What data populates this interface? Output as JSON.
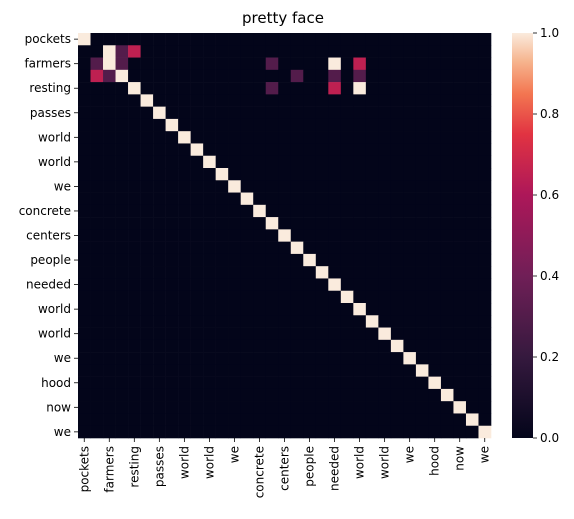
{
  "chart_data": {
    "type": "heatmap",
    "title": "pretty face",
    "row_labels": [
      "pockets",
      "",
      "farmers",
      "",
      "resting",
      "",
      "passes",
      "",
      "world",
      "",
      "world",
      "",
      "we",
      "",
      "concrete",
      "",
      "centers",
      "",
      "people",
      "",
      "needed",
      "",
      "world",
      "",
      "world",
      "",
      "we",
      "",
      "hood",
      "",
      "now",
      "",
      "we"
    ],
    "col_labels": [
      "pockets",
      "",
      "farmers",
      "",
      "resting",
      "",
      "passes",
      "",
      "world",
      "",
      "world",
      "",
      "we",
      "",
      "concrete",
      "",
      "centers",
      "",
      "people",
      "",
      "needed",
      "",
      "world",
      "",
      "world",
      "",
      "we",
      "",
      "hood",
      "",
      "now",
      "",
      "we"
    ],
    "values": [
      [
        1,
        0,
        0,
        0,
        0,
        0,
        0,
        0,
        0,
        0,
        0,
        0,
        0,
        0,
        0,
        0,
        0,
        0,
        0,
        0,
        0,
        0,
        0,
        0,
        0,
        0,
        0,
        0,
        0,
        0,
        0,
        0,
        0
      ],
      [
        0,
        0,
        1,
        0.3,
        0.65,
        0,
        0,
        0,
        0,
        0,
        0,
        0,
        0,
        0,
        0,
        0,
        0,
        0,
        0,
        0,
        0,
        0,
        0,
        0,
        0,
        0,
        0,
        0,
        0,
        0,
        0,
        0,
        0
      ],
      [
        0,
        0.3,
        1,
        0.3,
        0,
        0,
        0,
        0,
        0,
        0,
        0,
        0,
        0,
        0,
        0,
        0.3,
        0,
        0,
        0,
        0,
        1,
        0,
        0.65,
        0,
        0,
        0,
        0,
        0,
        0,
        0,
        0,
        0,
        0
      ],
      [
        0,
        0.65,
        0.3,
        1,
        0,
        0,
        0,
        0,
        0,
        0,
        0,
        0,
        0,
        0,
        0,
        0,
        0,
        0.3,
        0,
        0,
        0.3,
        0,
        0.3,
        0,
        0,
        0,
        0,
        0,
        0,
        0,
        0,
        0,
        0
      ],
      [
        0,
        0,
        0,
        0,
        1,
        0,
        0,
        0,
        0,
        0,
        0,
        0,
        0,
        0,
        0,
        0.3,
        0,
        0,
        0,
        0,
        0.65,
        0,
        1,
        0,
        0,
        0,
        0,
        0,
        0,
        0,
        0,
        0,
        0
      ],
      [
        0,
        0,
        0,
        0,
        0,
        1,
        0,
        0,
        0,
        0,
        0,
        0,
        0,
        0,
        0,
        0,
        0,
        0,
        0,
        0,
        0,
        0,
        0,
        0,
        0,
        0,
        0,
        0,
        0,
        0,
        0,
        0,
        0
      ],
      [
        0,
        0,
        0,
        0,
        0,
        0,
        1,
        0,
        0,
        0,
        0,
        0,
        0,
        0,
        0,
        0,
        0,
        0,
        0,
        0,
        0,
        0,
        0,
        0,
        0,
        0,
        0,
        0,
        0,
        0,
        0,
        0,
        0
      ],
      [
        0,
        0,
        0,
        0,
        0,
        0,
        0,
        1,
        0,
        0,
        0,
        0,
        0,
        0,
        0,
        0,
        0,
        0,
        0,
        0,
        0,
        0,
        0,
        0,
        0,
        0,
        0,
        0,
        0,
        0,
        0,
        0,
        0
      ],
      [
        0,
        0,
        0,
        0,
        0,
        0,
        0,
        0,
        1,
        0,
        0,
        0,
        0,
        0,
        0,
        0,
        0,
        0,
        0,
        0,
        0,
        0,
        0,
        0,
        0,
        0,
        0,
        0,
        0,
        0,
        0,
        0,
        0
      ],
      [
        0,
        0,
        0,
        0,
        0,
        0,
        0,
        0,
        0,
        1,
        0,
        0,
        0,
        0,
        0,
        0,
        0,
        0,
        0,
        0,
        0,
        0,
        0,
        0,
        0,
        0,
        0,
        0,
        0,
        0,
        0,
        0,
        0
      ],
      [
        0,
        0,
        0,
        0,
        0,
        0,
        0,
        0,
        0,
        0,
        1,
        0,
        0,
        0,
        0,
        0,
        0,
        0,
        0,
        0,
        0,
        0,
        0,
        0,
        0,
        0,
        0,
        0,
        0,
        0,
        0,
        0,
        0
      ],
      [
        0,
        0,
        0,
        0,
        0,
        0,
        0,
        0,
        0,
        0,
        0,
        1,
        0,
        0,
        0,
        0,
        0,
        0,
        0,
        0,
        0,
        0,
        0,
        0,
        0,
        0,
        0,
        0,
        0,
        0,
        0,
        0,
        0
      ],
      [
        0,
        0,
        0,
        0,
        0,
        0,
        0,
        0,
        0,
        0,
        0,
        0,
        1,
        0,
        0,
        0,
        0,
        0,
        0,
        0,
        0,
        0,
        0,
        0,
        0,
        0,
        0,
        0,
        0,
        0,
        0,
        0,
        0
      ],
      [
        0,
        0,
        0,
        0,
        0,
        0,
        0,
        0,
        0,
        0,
        0,
        0,
        0,
        1,
        0,
        0,
        0,
        0,
        0,
        0,
        0,
        0,
        0,
        0,
        0,
        0,
        0,
        0,
        0,
        0,
        0,
        0,
        0
      ],
      [
        0,
        0,
        0,
        0,
        0,
        0,
        0,
        0,
        0,
        0,
        0,
        0,
        0,
        0,
        1,
        0,
        0,
        0,
        0,
        0,
        0,
        0,
        0,
        0,
        0,
        0,
        0,
        0,
        0,
        0,
        0,
        0,
        0
      ],
      [
        0,
        0,
        0,
        0,
        0,
        0,
        0,
        0,
        0,
        0,
        0,
        0,
        0,
        0,
        0,
        1,
        0,
        0,
        0,
        0,
        0,
        0,
        0,
        0,
        0,
        0,
        0,
        0,
        0,
        0,
        0,
        0,
        0
      ],
      [
        0,
        0,
        0,
        0,
        0,
        0,
        0,
        0,
        0,
        0,
        0,
        0,
        0,
        0,
        0,
        0,
        1,
        0,
        0,
        0,
        0,
        0,
        0,
        0,
        0,
        0,
        0,
        0,
        0,
        0,
        0,
        0,
        0
      ],
      [
        0,
        0,
        0,
        0,
        0,
        0,
        0,
        0,
        0,
        0,
        0,
        0,
        0,
        0,
        0,
        0,
        0,
        1,
        0,
        0,
        0,
        0,
        0,
        0,
        0,
        0,
        0,
        0,
        0,
        0,
        0,
        0,
        0
      ],
      [
        0,
        0,
        0,
        0,
        0,
        0,
        0,
        0,
        0,
        0,
        0,
        0,
        0,
        0,
        0,
        0,
        0,
        0,
        1,
        0,
        0,
        0,
        0,
        0,
        0,
        0,
        0,
        0,
        0,
        0,
        0,
        0,
        0
      ],
      [
        0,
        0,
        0,
        0,
        0,
        0,
        0,
        0,
        0,
        0,
        0,
        0,
        0,
        0,
        0,
        0,
        0,
        0,
        0,
        1,
        0,
        0,
        0,
        0,
        0,
        0,
        0,
        0,
        0,
        0,
        0,
        0,
        0
      ],
      [
        0,
        0,
        0,
        0,
        0,
        0,
        0,
        0,
        0,
        0,
        0,
        0,
        0,
        0,
        0,
        0,
        0,
        0,
        0,
        0,
        1,
        0,
        0,
        0,
        0,
        0,
        0,
        0,
        0,
        0,
        0,
        0,
        0
      ],
      [
        0,
        0,
        0,
        0,
        0,
        0,
        0,
        0,
        0,
        0,
        0,
        0,
        0,
        0,
        0,
        0,
        0,
        0,
        0,
        0,
        0,
        1,
        0,
        0,
        0,
        0,
        0,
        0,
        0,
        0,
        0,
        0,
        0
      ],
      [
        0,
        0,
        0,
        0,
        0,
        0,
        0,
        0,
        0,
        0,
        0,
        0,
        0,
        0,
        0,
        0,
        0,
        0,
        0,
        0,
        0,
        0,
        1,
        0,
        0,
        0,
        0,
        0,
        0,
        0,
        0,
        0,
        0
      ],
      [
        0,
        0,
        0,
        0,
        0,
        0,
        0,
        0,
        0,
        0,
        0,
        0,
        0,
        0,
        0,
        0,
        0,
        0,
        0,
        0,
        0,
        0,
        0,
        1,
        0,
        0,
        0,
        0,
        0,
        0,
        0,
        0,
        0
      ],
      [
        0,
        0,
        0,
        0,
        0,
        0,
        0,
        0,
        0,
        0,
        0,
        0,
        0,
        0,
        0,
        0,
        0,
        0,
        0,
        0,
        0,
        0,
        0,
        0,
        1,
        0,
        0,
        0,
        0,
        0,
        0,
        0,
        0
      ],
      [
        0,
        0,
        0,
        0,
        0,
        0,
        0,
        0,
        0,
        0,
        0,
        0,
        0,
        0,
        0,
        0,
        0,
        0,
        0,
        0,
        0,
        0,
        0,
        0,
        0,
        1,
        0,
        0,
        0,
        0,
        0,
        0,
        0
      ],
      [
        0,
        0,
        0,
        0,
        0,
        0,
        0,
        0,
        0,
        0,
        0,
        0,
        0,
        0,
        0,
        0,
        0,
        0,
        0,
        0,
        0,
        0,
        0,
        0,
        0,
        0,
        1,
        0,
        0,
        0,
        0,
        0,
        0
      ],
      [
        0,
        0,
        0,
        0,
        0,
        0,
        0,
        0,
        0,
        0,
        0,
        0,
        0,
        0,
        0,
        0,
        0,
        0,
        0,
        0,
        0,
        0,
        0,
        0,
        0,
        0,
        0,
        1,
        0,
        0,
        0,
        0,
        0
      ],
      [
        0,
        0,
        0,
        0,
        0,
        0,
        0,
        0,
        0,
        0,
        0,
        0,
        0,
        0,
        0,
        0,
        0,
        0,
        0,
        0,
        0,
        0,
        0,
        0,
        0,
        0,
        0,
        0,
        1,
        0,
        0,
        0,
        0
      ],
      [
        0,
        0,
        0,
        0,
        0,
        0,
        0,
        0,
        0,
        0,
        0,
        0,
        0,
        0,
        0,
        0,
        0,
        0,
        0,
        0,
        0,
        0,
        0,
        0,
        0,
        0,
        0,
        0,
        0,
        1,
        0,
        0,
        0
      ],
      [
        0,
        0,
        0,
        0,
        0,
        0,
        0,
        0,
        0,
        0,
        0,
        0,
        0,
        0,
        0,
        0,
        0,
        0,
        0,
        0,
        0,
        0,
        0,
        0,
        0,
        0,
        0,
        0,
        0,
        0,
        1,
        0,
        0
      ],
      [
        0,
        0,
        0,
        0,
        0,
        0,
        0,
        0,
        0,
        0,
        0,
        0,
        0,
        0,
        0,
        0,
        0,
        0,
        0,
        0,
        0,
        0,
        0,
        0,
        0,
        0,
        0,
        0,
        0,
        0,
        0,
        1,
        0
      ],
      [
        0,
        0,
        0,
        0,
        0,
        0,
        0,
        0,
        0,
        0,
        0,
        0,
        0,
        0,
        0,
        0,
        0,
        0,
        0,
        0,
        0,
        0,
        0,
        0,
        0,
        0,
        0,
        0,
        0,
        0,
        0,
        0,
        1
      ]
    ],
    "colorbar": {
      "min": 0.0,
      "max": 1.0,
      "ticks": [
        "0.0",
        "0.2",
        "0.4",
        "0.6",
        "0.8",
        "1.0"
      ]
    },
    "colormap": "rocket",
    "colors": {
      "low": "#03051a",
      "high": "#faebdd"
    }
  }
}
